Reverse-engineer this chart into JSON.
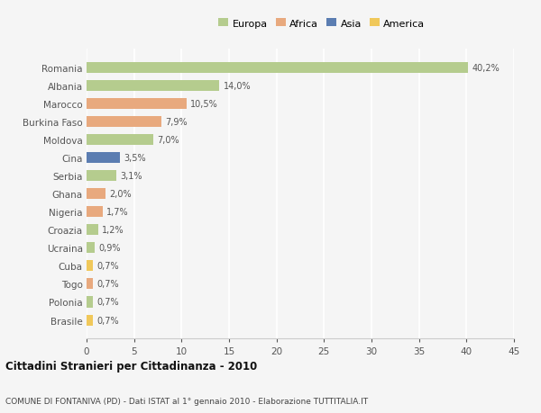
{
  "countries": [
    "Romania",
    "Albania",
    "Marocco",
    "Burkina Faso",
    "Moldova",
    "Cina",
    "Serbia",
    "Ghana",
    "Nigeria",
    "Croazia",
    "Ucraina",
    "Cuba",
    "Togo",
    "Polonia",
    "Brasile"
  ],
  "values": [
    40.2,
    14.0,
    10.5,
    7.9,
    7.0,
    3.5,
    3.1,
    2.0,
    1.7,
    1.2,
    0.9,
    0.7,
    0.7,
    0.7,
    0.7
  ],
  "labels": [
    "40,2%",
    "14,0%",
    "10,5%",
    "7,9%",
    "7,0%",
    "3,5%",
    "3,1%",
    "2,0%",
    "1,7%",
    "1,2%",
    "0,9%",
    "0,7%",
    "0,7%",
    "0,7%",
    "0,7%"
  ],
  "continents": [
    "Europa",
    "Europa",
    "Africa",
    "Africa",
    "Europa",
    "Asia",
    "Europa",
    "Africa",
    "Africa",
    "Europa",
    "Europa",
    "America",
    "Africa",
    "Europa",
    "America"
  ],
  "continent_colors": {
    "Europa": "#b5cc8e",
    "Africa": "#e8a97e",
    "Asia": "#5b7db1",
    "America": "#f0c85a"
  },
  "legend_items": [
    "Europa",
    "Africa",
    "Asia",
    "America"
  ],
  "legend_colors": [
    "#b5cc8e",
    "#e8a97e",
    "#5b7db1",
    "#f0c85a"
  ],
  "title": "Cittadini Stranieri per Cittadinanza - 2010",
  "subtitle": "COMUNE DI FONTANIVA (PD) - Dati ISTAT al 1° gennaio 2010 - Elaborazione TUTTITALIA.IT",
  "xlim": [
    0,
    45
  ],
  "xticks": [
    0,
    5,
    10,
    15,
    20,
    25,
    30,
    35,
    40,
    45
  ],
  "background_color": "#f5f5f5",
  "grid_color": "#ffffff"
}
